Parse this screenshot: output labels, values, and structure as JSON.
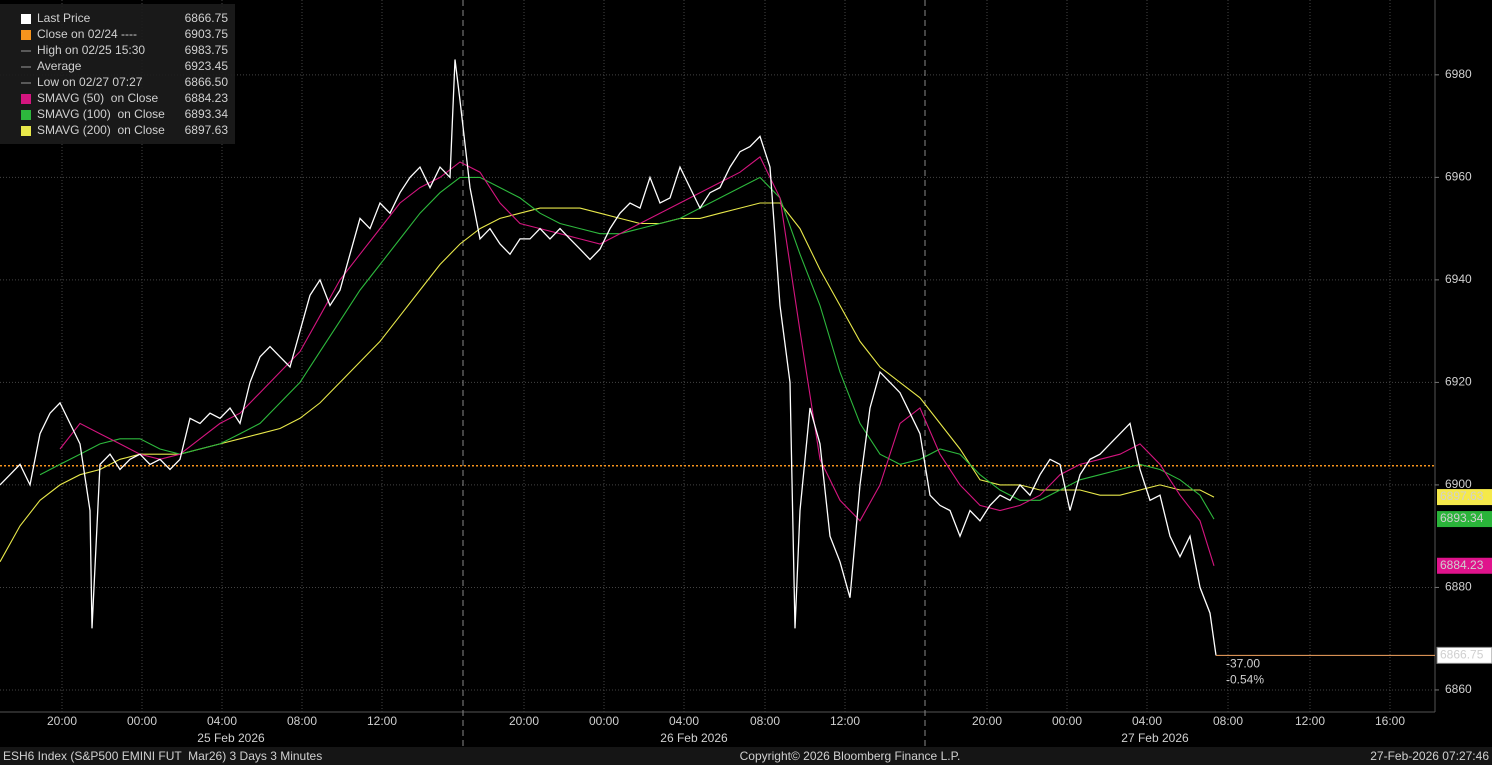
{
  "chart_data": {
    "type": "line",
    "xlim": [
      0,
      71.75
    ],
    "ylim": [
      6855.7,
      6994.6
    ],
    "yticks": [
      6860,
      6880,
      6900,
      6920,
      6940,
      6960,
      6980
    ],
    "xticks": [
      {
        "value": 3.1,
        "label": "20:00"
      },
      {
        "value": 7.1,
        "label": "00:00"
      },
      {
        "value": 11.1,
        "label": "04:00"
      },
      {
        "value": 15.1,
        "label": "08:00"
      },
      {
        "value": 19.1,
        "label": "12:00"
      },
      {
        "value": 26.2,
        "label": "20:00"
      },
      {
        "value": 30.2,
        "label": "00:00"
      },
      {
        "value": 34.2,
        "label": "04:00"
      },
      {
        "value": 38.25,
        "label": "08:00"
      },
      {
        "value": 42.25,
        "label": "12:00"
      },
      {
        "value": 49.35,
        "label": "20:00"
      },
      {
        "value": 53.35,
        "label": "00:00"
      },
      {
        "value": 57.35,
        "label": "04:00"
      },
      {
        "value": 61.4,
        "label": "08:00"
      },
      {
        "value": 65.5,
        "label": "12:00"
      },
      {
        "value": 69.5,
        "label": "16:00"
      }
    ],
    "date_ticks": [
      {
        "value": 11.55,
        "label": "25 Feb 2026"
      },
      {
        "value": 34.7,
        "label": "26 Feb 2026"
      },
      {
        "value": 57.75,
        "label": "27 Feb 2026"
      }
    ],
    "day_breaks": [
      23.15,
      46.25
    ],
    "grid": true,
    "series": [
      {
        "name": "Last Price",
        "color": "#ffffff",
        "x": [
          0,
          0.5,
          1,
          1.5,
          2,
          2.5,
          3,
          3.5,
          4,
          4.5,
          4.6,
          5,
          5.5,
          6,
          6.5,
          7,
          7.5,
          8,
          8.5,
          9,
          9.5,
          10,
          10.5,
          11,
          11.5,
          12,
          12.5,
          13,
          13.5,
          14,
          14.5,
          15,
          15.5,
          16,
          16.5,
          17,
          17.5,
          18,
          18.5,
          19,
          19.5,
          20,
          20.5,
          21,
          21.5,
          22,
          22.5,
          22.75,
          23,
          23.5,
          24,
          24.5,
          25,
          25.5,
          26,
          26.5,
          27,
          27.5,
          28,
          28.5,
          29,
          29.5,
          30,
          30.5,
          31,
          31.5,
          32,
          32.5,
          33,
          33.5,
          34,
          34.5,
          35,
          35.5,
          36,
          36.5,
          37,
          37.5,
          38,
          38.5,
          39,
          39.5,
          39.75,
          40,
          40.5,
          41,
          41.5,
          42,
          42.5,
          43,
          43.5,
          44,
          44.5,
          45,
          45.5,
          46,
          46.5,
          47,
          47.5,
          48,
          48.5,
          49,
          49.5,
          50,
          50.5,
          51,
          51.5,
          52,
          52.5,
          53,
          53.5,
          54,
          54.5,
          55,
          55.5,
          56,
          56.5,
          57,
          57.5,
          58,
          58.5,
          59,
          59.5,
          60,
          60.5,
          60.8
        ],
        "values": [
          6900,
          6902,
          6904,
          6900,
          6910,
          6914,
          6916,
          6912,
          6908,
          6895,
          6872,
          6904,
          6906,
          6903,
          6905,
          6906,
          6904,
          6905,
          6903,
          6905,
          6913,
          6912,
          6914,
          6913,
          6915,
          6912,
          6920,
          6925,
          6927,
          6925,
          6923,
          6930,
          6937,
          6940,
          6935,
          6938,
          6945,
          6952,
          6950,
          6955,
          6953,
          6957,
          6960,
          6962,
          6958,
          6962,
          6960,
          6983,
          6975,
          6958,
          6948,
          6950,
          6947,
          6945,
          6948,
          6948,
          6950,
          6948,
          6950,
          6948,
          6946,
          6944,
          6946,
          6950,
          6953,
          6955,
          6954,
          6960,
          6955,
          6956,
          6962,
          6958,
          6954,
          6957,
          6958,
          6962,
          6965,
          6966,
          6968,
          6962,
          6935,
          6920,
          6872,
          6895,
          6915,
          6908,
          6890,
          6885,
          6878,
          6900,
          6915,
          6922,
          6920,
          6918,
          6914,
          6910,
          6898,
          6896,
          6895,
          6890,
          6895,
          6893,
          6896,
          6898,
          6897,
          6900,
          6898,
          6902,
          6905,
          6904,
          6895,
          6902,
          6905,
          6906,
          6908,
          6910,
          6912,
          6903,
          6897,
          6898,
          6890,
          6886,
          6890,
          6880,
          6875,
          6866.75
        ]
      },
      {
        "name": "SMAVG (50)  on Close",
        "color": "#d4157f",
        "x": [
          3,
          4,
          5,
          6,
          7,
          8,
          9,
          10,
          11,
          12,
          13,
          14,
          15,
          16,
          17,
          18,
          19,
          20,
          21,
          22,
          23,
          24,
          25,
          26,
          27,
          28,
          29,
          30,
          31,
          32,
          33,
          34,
          35,
          36,
          37,
          38,
          39,
          40,
          41,
          42,
          43,
          44,
          45,
          46,
          47,
          48,
          49,
          50,
          51,
          52,
          53,
          54,
          55,
          56,
          57,
          58,
          59,
          60,
          60.7
        ],
        "values": [
          6907,
          6912,
          6910,
          6908,
          6906,
          6905,
          6906,
          6909,
          6912,
          6914,
          6918,
          6922,
          6926,
          6933,
          6940,
          6945,
          6950,
          6955,
          6958,
          6960,
          6963,
          6961,
          6955,
          6951,
          6950,
          6949,
          6948,
          6947,
          6949,
          6951,
          6953,
          6955,
          6957,
          6959,
          6961,
          6964,
          6956,
          6930,
          6905,
          6897,
          6893,
          6900,
          6912,
          6915,
          6906,
          6900,
          6896,
          6895,
          6896,
          6898,
          6902,
          6904,
          6905,
          6906,
          6908,
          6904,
          6898,
          6893,
          6884.23
        ]
      },
      {
        "name": "SMAVG (100)  on Close",
        "color": "#2db83d",
        "x": [
          2,
          3,
          4,
          5,
          6,
          7,
          8,
          9,
          10,
          11,
          12,
          13,
          14,
          15,
          16,
          17,
          18,
          19,
          20,
          21,
          22,
          23,
          24,
          25,
          26,
          27,
          28,
          29,
          30,
          31,
          32,
          33,
          34,
          35,
          36,
          37,
          38,
          39,
          40,
          41,
          42,
          43,
          44,
          45,
          46,
          47,
          48,
          49,
          50,
          51,
          52,
          53,
          54,
          55,
          56,
          57,
          58,
          59,
          60,
          60.7
        ],
        "values": [
          6902,
          6904,
          6906,
          6908,
          6909,
          6909,
          6907,
          6906,
          6907,
          6908,
          6910,
          6912,
          6916,
          6920,
          6926,
          6932,
          6938,
          6943,
          6948,
          6953,
          6957,
          6960,
          6960,
          6958,
          6956,
          6953,
          6951,
          6950,
          6949,
          6949,
          6950,
          6951,
          6952,
          6954,
          6956,
          6958,
          6960,
          6956,
          6945,
          6935,
          6922,
          6912,
          6906,
          6904,
          6905,
          6907,
          6906,
          6902,
          6899,
          6897,
          6897,
          6899,
          6901,
          6902,
          6903,
          6904,
          6903,
          6901,
          6898,
          6893.34
        ]
      },
      {
        "name": "SMAVG (200)  on Close",
        "color": "#e8e84a",
        "x": [
          0,
          1,
          2,
          3,
          4,
          5,
          6,
          7,
          8,
          9,
          10,
          11,
          12,
          13,
          14,
          15,
          16,
          17,
          18,
          19,
          20,
          21,
          22,
          23,
          24,
          25,
          26,
          27,
          28,
          29,
          30,
          31,
          32,
          33,
          34,
          35,
          36,
          37,
          38,
          39,
          40,
          41,
          42,
          43,
          44,
          45,
          46,
          47,
          48,
          49,
          50,
          51,
          52,
          53,
          54,
          55,
          56,
          57,
          58,
          59,
          60,
          60.7
        ],
        "values": [
          6885,
          6892,
          6897,
          6900,
          6902,
          6903,
          6905,
          6906,
          6906,
          6906,
          6907,
          6908,
          6909,
          6910,
          6911,
          6913,
          6916,
          6920,
          6924,
          6928,
          6933,
          6938,
          6943,
          6947,
          6950,
          6952,
          6953,
          6954,
          6954,
          6954,
          6953,
          6952,
          6951,
          6951,
          6952,
          6952,
          6953,
          6954,
          6955,
          6955,
          6950,
          6942,
          6935,
          6928,
          6923,
          6920,
          6917,
          6912,
          6907,
          6901,
          6900,
          6900,
          6899,
          6899,
          6899,
          6898,
          6898,
          6899,
          6900,
          6899,
          6899,
          6897.63
        ]
      }
    ],
    "stats": [
      {
        "label": "Close on 02/24 ----",
        "value": 6903.75,
        "color": "#f7941d"
      },
      {
        "label": "High on 02/25 15:30",
        "value": 6983.75
      },
      {
        "label": "Average",
        "value": 6923.45
      },
      {
        "label": "Low on 02/27 07:27",
        "value": 6866.5,
        "value_label": "6866.50"
      }
    ],
    "annotations": [
      "-37.00",
      "-0.54%"
    ],
    "footer": [
      "ESH6 Index (S&P500 EMINI FUT  Mar26) 3 Days 3 Minutes",
      "Copyright© 2026 Bloomberg Finance L.P.",
      "27-Feb-2026 07:27:46"
    ]
  }
}
